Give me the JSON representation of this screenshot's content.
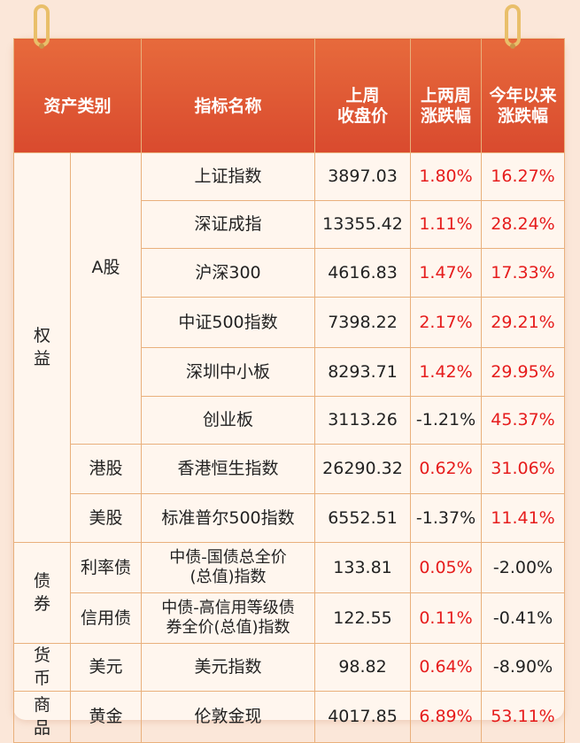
{
  "headers": {
    "asset_class": "资产类别",
    "indicator": "指标名称",
    "close": "上周\n收盘价",
    "two_week": "上两周\n涨跌幅",
    "ytd": "今年以来\n涨跌幅"
  },
  "groups": {
    "equity": "权\n益",
    "bond": "债\n券",
    "currency": "货\n币",
    "commodity": "商\n品"
  },
  "subgroups": {
    "a_share": "A股",
    "hk": "港股",
    "us": "美股",
    "rate_bond": "利率债",
    "credit_bond": "信用债",
    "usd": "美元",
    "gold": "黄金"
  },
  "rows": [
    {
      "name": "上证指数",
      "close": "3897.03",
      "two_week": "1.80%",
      "two_week_dir": "up",
      "ytd": "16.27%",
      "ytd_dir": "up"
    },
    {
      "name": "深证成指",
      "close": "13355.42",
      "two_week": "1.11%",
      "two_week_dir": "up",
      "ytd": "28.24%",
      "ytd_dir": "up"
    },
    {
      "name": "沪深300",
      "close": "4616.83",
      "two_week": "1.47%",
      "two_week_dir": "up",
      "ytd": "17.33%",
      "ytd_dir": "up"
    },
    {
      "name": "中证500指数",
      "close": "7398.22",
      "two_week": "2.17%",
      "two_week_dir": "up",
      "ytd": "29.21%",
      "ytd_dir": "up"
    },
    {
      "name": "深圳中小板",
      "close": "8293.71",
      "two_week": "1.42%",
      "two_week_dir": "up",
      "ytd": "29.95%",
      "ytd_dir": "up"
    },
    {
      "name": "创业板",
      "close": "3113.26",
      "two_week": "-1.21%",
      "two_week_dir": "down",
      "ytd": "45.37%",
      "ytd_dir": "up"
    },
    {
      "name": "香港恒生指数",
      "close": "26290.32",
      "two_week": "0.62%",
      "two_week_dir": "up",
      "ytd": "31.06%",
      "ytd_dir": "up"
    },
    {
      "name": "标准普尔500指数",
      "close": "6552.51",
      "two_week": "-1.37%",
      "two_week_dir": "down",
      "ytd": "11.41%",
      "ytd_dir": "up"
    },
    {
      "name": "中债-国债总全价\n(总值)指数",
      "close": "133.81",
      "two_week": "0.05%",
      "two_week_dir": "up",
      "ytd": "-2.00%",
      "ytd_dir": "down"
    },
    {
      "name": "中债-高信用等级债\n券全价(总值)指数",
      "close": "122.55",
      "two_week": "0.11%",
      "two_week_dir": "up",
      "ytd": "-0.41%",
      "ytd_dir": "down"
    },
    {
      "name": "美元指数",
      "close": "98.82",
      "two_week": "0.64%",
      "two_week_dir": "up",
      "ytd": "-8.90%",
      "ytd_dir": "down"
    },
    {
      "name": "伦敦金现",
      "close": "4017.85",
      "two_week": "6.89%",
      "two_week_dir": "up",
      "ytd": "53.11%",
      "ytd_dir": "up"
    }
  ],
  "colors": {
    "up": "#e61c1c",
    "down": "#222222",
    "header": "#dc5230",
    "border": "#e9b07c"
  }
}
